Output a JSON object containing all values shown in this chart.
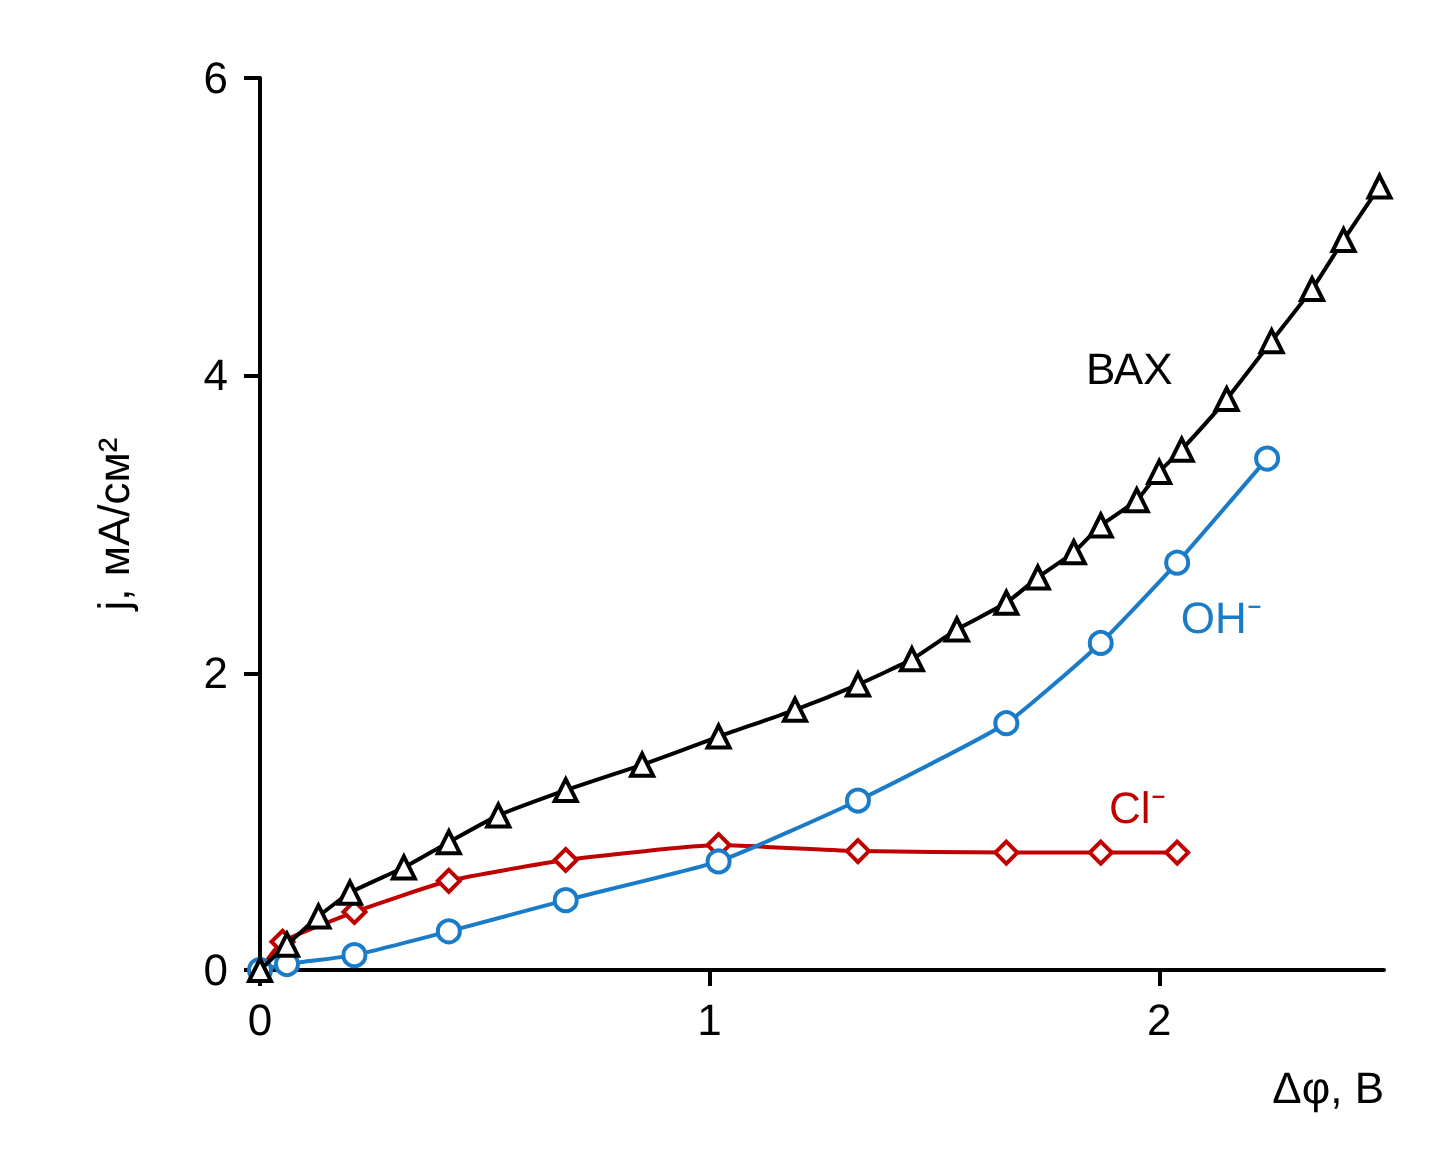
{
  "chart_data": {
    "type": "line",
    "xlabel": "Δφ, В",
    "ylabel": "j, мА/см²",
    "xlim": [
      0,
      2.5
    ],
    "xticks": [
      0,
      1,
      2
    ],
    "ylim": [
      0,
      6
    ],
    "yticks": [
      0,
      2,
      4,
      6
    ],
    "grid": false,
    "legend": false,
    "series": [
      {
        "name": "ВАХ",
        "color": "#000000",
        "marker": "triangle",
        "x": [
          0,
          0.06,
          0.13,
          0.2,
          0.32,
          0.42,
          0.53,
          0.68,
          0.85,
          1.02,
          1.19,
          1.33,
          1.45,
          1.55,
          1.66,
          1.73,
          1.81,
          1.87,
          1.95,
          2.0,
          2.05,
          2.15,
          2.25,
          2.34,
          2.41,
          2.49
        ],
        "values": [
          0,
          0.17,
          0.36,
          0.52,
          0.69,
          0.86,
          1.04,
          1.21,
          1.38,
          1.57,
          1.75,
          1.92,
          2.09,
          2.29,
          2.47,
          2.64,
          2.81,
          2.99,
          3.16,
          3.35,
          3.5,
          3.84,
          4.23,
          4.58,
          4.91,
          5.27
        ]
      },
      {
        "name": "OH⁻",
        "color": "#1a7cc8",
        "marker": "circle",
        "x": [
          0,
          0.06,
          0.21,
          0.42,
          0.68,
          1.02,
          1.33,
          1.66,
          1.87,
          2.04,
          2.24
        ],
        "values": [
          0,
          0.04,
          0.1,
          0.26,
          0.47,
          0.73,
          1.14,
          1.66,
          2.2,
          2.74,
          3.44
        ]
      },
      {
        "name": "Cl⁻",
        "color": "#c00000",
        "marker": "diamond",
        "x": [
          0,
          0.05,
          0.21,
          0.42,
          0.68,
          1.02,
          1.33,
          1.66,
          1.87,
          2.04
        ],
        "values": [
          0,
          0.19,
          0.39,
          0.6,
          0.74,
          0.84,
          0.8,
          0.79,
          0.79,
          0.79
        ]
      }
    ]
  }
}
